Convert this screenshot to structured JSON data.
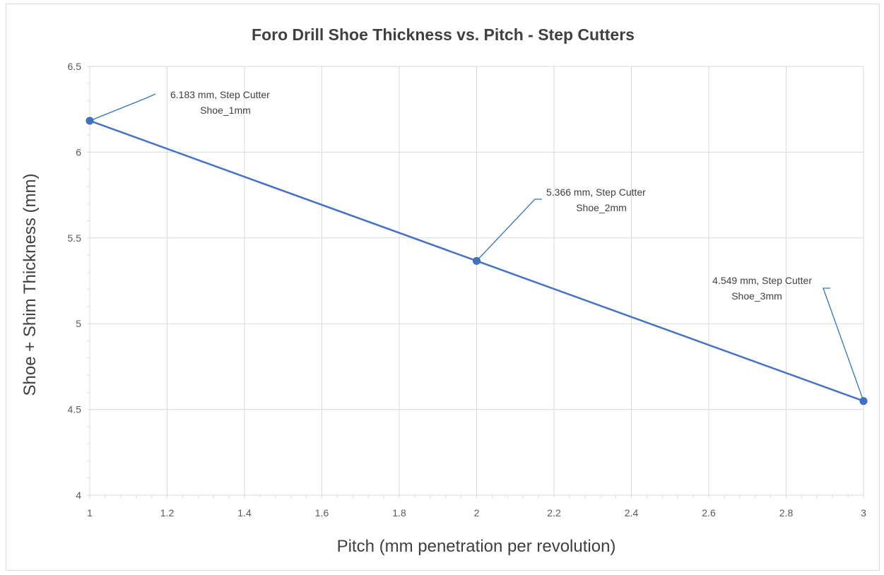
{
  "chart_data": {
    "type": "scatter",
    "title": "Foro Drill Shoe Thickness vs. Pitch - Step Cutters",
    "xlabel": "Pitch (mm penetration per revolution)",
    "ylabel": "Shoe + Shim Thickness (mm)",
    "xlim": [
      1,
      3
    ],
    "ylim": [
      4,
      6.5
    ],
    "x_ticks": [
      "1",
      "1.2",
      "1.4",
      "1.6",
      "1.8",
      "2",
      "2.2",
      "2.4",
      "2.6",
      "2.8",
      "3"
    ],
    "y_ticks": [
      "4",
      "4.5",
      "5",
      "5.5",
      "6",
      "6.5"
    ],
    "grid": true,
    "legend": "none",
    "series_color": "#4472c4",
    "leader_color": "#2e75b6",
    "series": [
      {
        "x": [
          1,
          2,
          3
        ],
        "y": [
          6.183,
          5.366,
          4.549
        ]
      }
    ],
    "annotations": [
      {
        "x": 1,
        "y": 6.183,
        "line1": "6.183 mm, Step Cutter",
        "line2": "Shoe_1mm"
      },
      {
        "x": 2,
        "y": 5.366,
        "line1": "5.366 mm, Step Cutter",
        "line2": "Shoe_2mm"
      },
      {
        "x": 3,
        "y": 4.549,
        "line1": "4.549 mm, Step Cutter",
        "line2": "Shoe_3mm"
      }
    ]
  }
}
